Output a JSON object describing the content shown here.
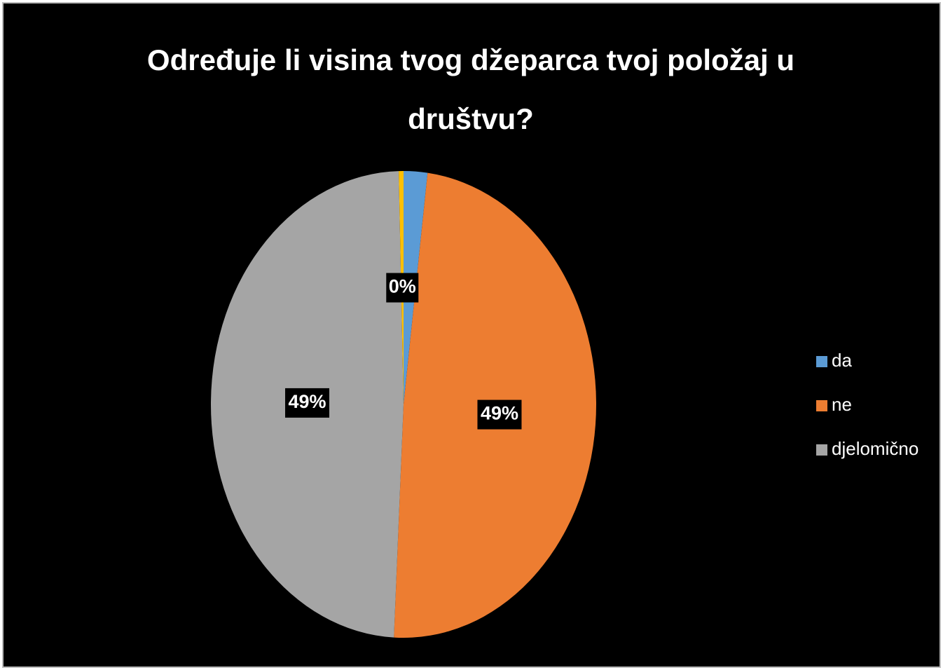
{
  "chart_data": {
    "type": "pie",
    "title": "Određuje li visina tvog džeparca tvoj položaj u društvu?",
    "categories": [
      "da",
      "ne",
      "djelomično",
      null
    ],
    "values": [
      2,
      49,
      49,
      0.4
    ],
    "value_labels": [
      null,
      "49%",
      "49%",
      "0%"
    ],
    "colors": [
      "#5b9bd5",
      "#ed7d31",
      "#a5a5a5",
      "#ffc000"
    ],
    "legend": "right"
  }
}
